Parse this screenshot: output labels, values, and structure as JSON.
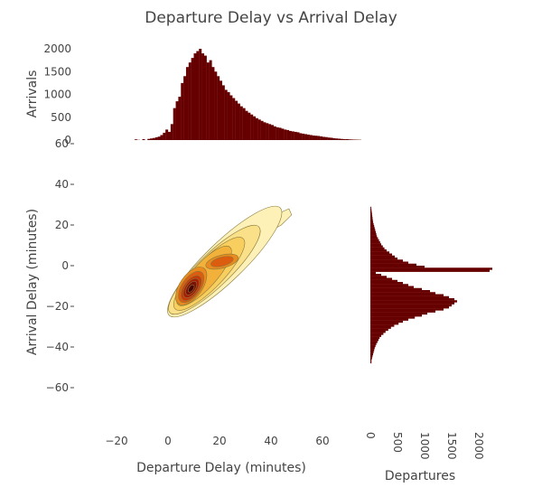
{
  "chart_data": {
    "type": "joint-kde-histogram",
    "title": "Departure Delay vs Arrival Delay",
    "colors": {
      "bars": "#660000",
      "contour_line": "#8a7a3a",
      "levels": [
        "#fdf1b8",
        "#fbe08a",
        "#f8cf5e",
        "#f2b13a",
        "#ea8a1f",
        "#dd5d10",
        "#c63a0a",
        "#a51e06",
        "#7e0f04",
        "#4a0402"
      ]
    },
    "main": {
      "xlabel": "Departure Delay (minutes)",
      "ylabel": "Arrival Delay (minutes)",
      "xlim": [
        -30,
        75
      ],
      "ylim": [
        -77,
        63
      ],
      "xticks": [
        -20,
        0,
        20,
        40,
        60
      ],
      "yticks": [
        -60,
        -40,
        -20,
        0,
        20,
        40,
        60
      ],
      "density_modes": [
        {
          "x": 9,
          "y": -11,
          "peak": 1.0
        },
        {
          "x": 20,
          "y": 2,
          "peak": 0.55
        },
        {
          "x": 40,
          "y": 22,
          "peak": 0.12
        }
      ]
    },
    "top_histogram": {
      "ylabel": "Arrivals",
      "ylim": [
        0,
        2000
      ],
      "yticks": [
        0,
        500,
        1000,
        1500,
        2000
      ],
      "bin_width": 1,
      "x_start": -13,
      "counts": [
        15,
        5,
        0,
        20,
        0,
        25,
        35,
        45,
        60,
        75,
        110,
        160,
        230,
        180,
        350,
        700,
        850,
        950,
        1250,
        1400,
        1600,
        1700,
        1800,
        1900,
        1950,
        2000,
        1900,
        1850,
        1700,
        1750,
        1600,
        1500,
        1400,
        1300,
        1200,
        1100,
        1050,
        980,
        920,
        860,
        800,
        740,
        700,
        640,
        600,
        560,
        520,
        480,
        450,
        420,
        390,
        370,
        350,
        330,
        300,
        280,
        270,
        250,
        230,
        220,
        200,
        190,
        180,
        170,
        150,
        140,
        130,
        120,
        110,
        100,
        95,
        90,
        80,
        70,
        65,
        55,
        50,
        40,
        35,
        30,
        25,
        20,
        20,
        15,
        12,
        10,
        8,
        6
      ]
    },
    "right_histogram": {
      "xlabel": "Departures",
      "xlim": [
        0,
        2400
      ],
      "xticks": [
        0,
        500,
        1000,
        1500,
        2000
      ],
      "bin_width": 1,
      "y_start": -48,
      "counts": [
        20,
        20,
        30,
        40,
        50,
        60,
        70,
        80,
        95,
        110,
        130,
        150,
        170,
        200,
        240,
        280,
        330,
        380,
        440,
        520,
        600,
        700,
        820,
        950,
        1050,
        1200,
        1350,
        1450,
        1500,
        1550,
        1600,
        1550,
        1450,
        1350,
        1200,
        1100,
        950,
        800,
        700,
        600,
        500,
        400,
        300,
        200,
        100,
        2200,
        2250,
        1000,
        850,
        700,
        600,
        500,
        450,
        400,
        350,
        300,
        260,
        230,
        200,
        180,
        160,
        140,
        120,
        110,
        100,
        90,
        80,
        70,
        60,
        50,
        45,
        40,
        35,
        30,
        25,
        20,
        15
      ]
    }
  }
}
